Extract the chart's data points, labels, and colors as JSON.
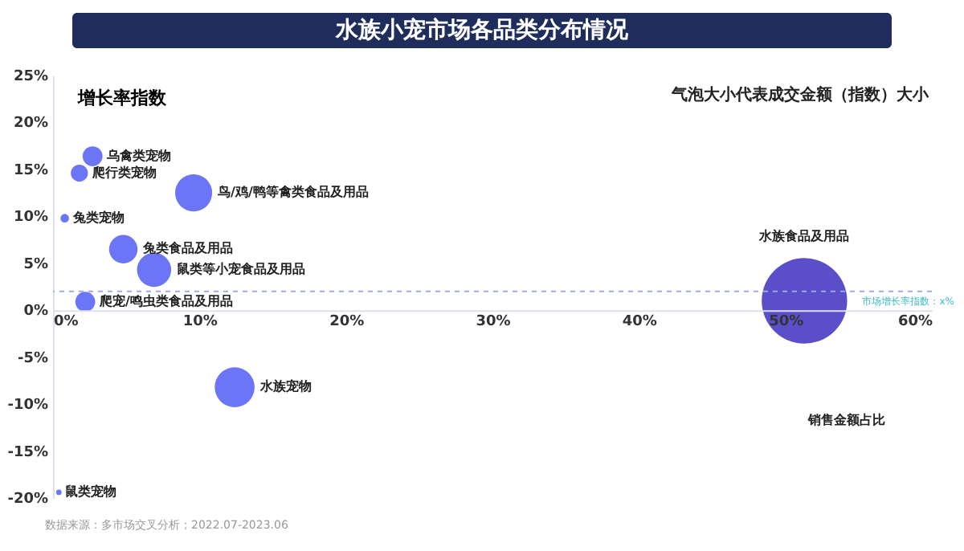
{
  "chart_data": {
    "type": "bubble",
    "title": "水族小宠市场各品类分布情况",
    "xlabel": "销售金额占比",
    "ylabel": "增长率指数",
    "series": [
      {
        "name": "乌禽类宠物",
        "color": "#6b75f5",
        "x": [
          2.7
        ],
        "values": [
          16.4
        ],
        "sizes": [
          0.054
        ]
      },
      {
        "name": "爬行类宠物",
        "color": "#6b75f5",
        "x": [
          1.8
        ],
        "values": [
          14.6
        ],
        "sizes": [
          0.04
        ]
      },
      {
        "name": "鸟/鸡/鸭等禽类食品及用品",
        "color": "#6b75f5",
        "x": [
          9.6
        ],
        "values": [
          12.5
        ],
        "sizes": [
          0.188
        ]
      },
      {
        "name": "兔类宠物",
        "color": "#6b75f5",
        "x": [
          0.8
        ],
        "values": [
          9.8
        ],
        "sizes": [
          0.01
        ]
      },
      {
        "name": "兔类食品及用品",
        "color": "#6b75f5",
        "x": [
          4.8
        ],
        "values": [
          6.5
        ],
        "sizes": [
          0.111
        ]
      },
      {
        "name": "鼠类等小宠食品及用品",
        "color": "#6b75f5",
        "x": [
          6.9
        ],
        "values": [
          4.3
        ],
        "sizes": [
          0.16
        ]
      },
      {
        "name": "爬宠/鸣虫类食品及用品",
        "color": "#6b75f5",
        "x": [
          2.2
        ],
        "values": [
          0.9
        ],
        "sizes": [
          0.054
        ]
      },
      {
        "name": "水族宠物",
        "color": "#6b75f5",
        "x": [
          12.4
        ],
        "values": [
          -8.2
        ],
        "sizes": [
          0.218
        ]
      },
      {
        "name": "鼠类宠物",
        "color": "#6b75f5",
        "x": [
          0.4
        ],
        "values": [
          -19.4
        ],
        "sizes": [
          0.004
        ]
      },
      {
        "name": "水族食品及用品",
        "color": "#5a4fc8",
        "x": [
          51.3
        ],
        "values": [
          1.0
        ],
        "sizes": [
          1
        ]
      }
    ],
    "xlim": [
      0,
      60
    ],
    "ylim": [
      -20,
      25
    ],
    "xticks": [
      {
        "value": 0,
        "label": "0%"
      },
      {
        "value": 10,
        "label": "10%"
      },
      {
        "value": 20,
        "label": "20%"
      },
      {
        "value": 30,
        "label": "30%"
      },
      {
        "value": 40,
        "label": "40%"
      },
      {
        "value": 50,
        "label": "50%"
      },
      {
        "value": 60,
        "label": "60%"
      }
    ],
    "yticks": [
      {
        "value": -20,
        "label": "-20%"
      },
      {
        "value": -15,
        "label": "-15%"
      },
      {
        "value": -10,
        "label": "-10%"
      },
      {
        "value": -5,
        "label": "-5%"
      },
      {
        "value": 0,
        "label": "0%"
      },
      {
        "value": 5,
        "label": "5%"
      },
      {
        "value": 10,
        "label": "10%"
      },
      {
        "value": 15,
        "label": "15%"
      },
      {
        "value": 20,
        "label": "20%"
      },
      {
        "value": 25,
        "label": "25%"
      }
    ],
    "ref_lines": [
      {
        "axis": "y",
        "value": 2,
        "label": "市场增长率指数：x%",
        "color": "#9fa8f0",
        "line_style": "dashed"
      }
    ],
    "annotations": [
      "气泡大小代表成交金额（指数）大小",
      "数据来源：多市场交叉分析；2022.07-2023.06"
    ],
    "grid": false,
    "legend": false
  }
}
